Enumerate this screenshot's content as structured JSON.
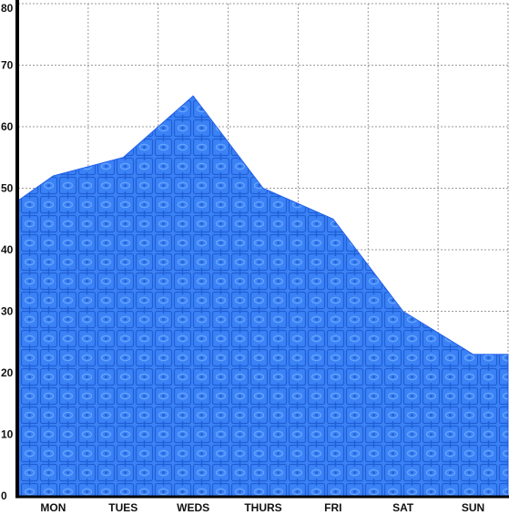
{
  "chart_data": {
    "type": "area",
    "categories": [
      "MON",
      "TUES",
      "WEDS",
      "THURS",
      "FRI",
      "SAT",
      "SUN"
    ],
    "x": [
      0.5,
      1.5,
      2.5,
      3.5,
      4.5,
      5.5,
      6.5
    ],
    "values": [
      52,
      55,
      65,
      50,
      45,
      30,
      23
    ],
    "start_value": 48,
    "end_value": 23,
    "ylim": [
      0,
      80
    ],
    "yticks": [
      0,
      10,
      20,
      30,
      40,
      50,
      60,
      70,
      80
    ],
    "grid": true,
    "legend": "none",
    "colors": {
      "fill": "#3b82f6",
      "pattern_dark": "#1f5fd6",
      "pattern_light": "#6aa6ff",
      "stroke": "#2563eb",
      "axis": "#000000",
      "grid": "#9a9a9a"
    }
  }
}
